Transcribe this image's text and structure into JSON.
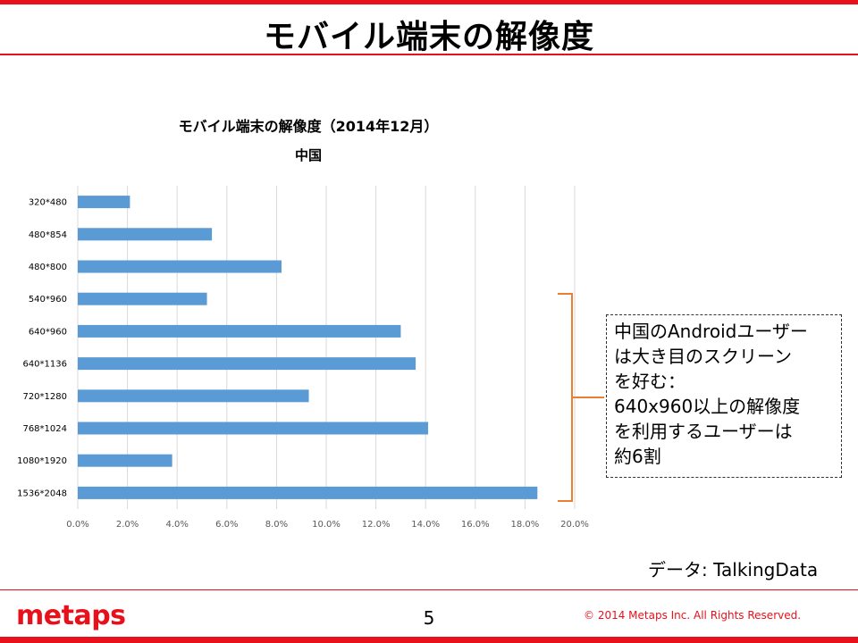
{
  "slide": {
    "title": "モバイル端末の解像度",
    "page_number": "5",
    "data_source": "データ: TalkingData",
    "logo_text": "metaps",
    "copyright": "© 2014  Metaps Inc. All Rights Reserved."
  },
  "callout": {
    "lines": [
      "中国のAndroidユーザー",
      "は大き目のスクリーン",
      "を好む：",
      "640x960以上の解像度",
      "を利用するユーザーは",
      "約6割"
    ]
  },
  "colors": {
    "bar": "#5b9bd5",
    "accent_red": "#e8111b",
    "bracket": "#ed7d31",
    "grid": "#d9d9d9"
  },
  "chart_data": {
    "type": "bar",
    "orientation": "horizontal",
    "title": "モバイル端末の解像度（2014年12月）",
    "subtitle": "中国",
    "categories": [
      "320*480",
      "480*854",
      "480*800",
      "540*960",
      "640*960",
      "640*1136",
      "720*1280",
      "768*1024",
      "1080*1920",
      "1536*2048"
    ],
    "values": [
      2.1,
      5.4,
      8.2,
      5.2,
      13.0,
      13.6,
      9.3,
      14.1,
      3.8,
      18.5
    ],
    "xlim": [
      0,
      20
    ],
    "xticks": [
      "0.0%",
      "2.0%",
      "4.0%",
      "6.0%",
      "8.0%",
      "10.0%",
      "12.0%",
      "14.0%",
      "16.0%",
      "18.0%",
      "20.0%"
    ],
    "grid": true,
    "unit": "%"
  }
}
